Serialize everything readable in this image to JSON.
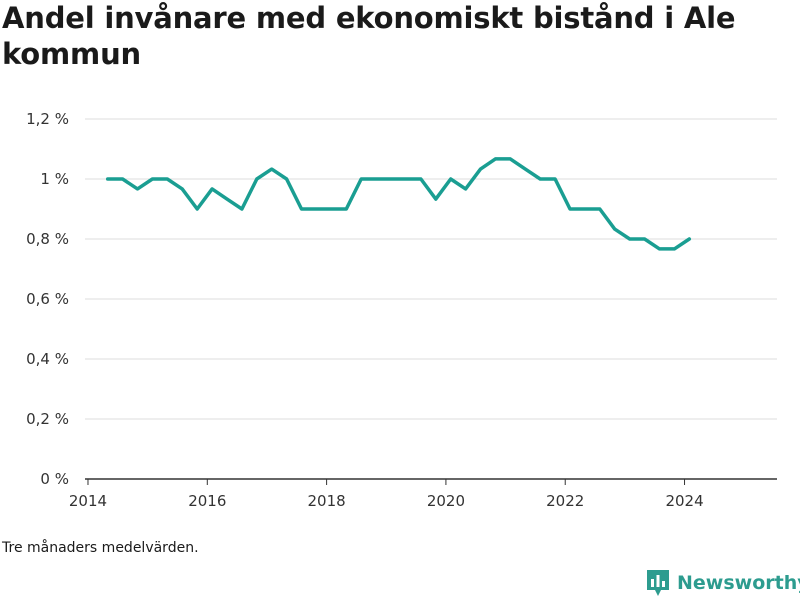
{
  "title": "Andel invånare med ekonomiskt bistånd i Ale kommun",
  "footnote": "Tre månaders medelvärden.",
  "brand": {
    "name": "Newsworthy",
    "icon": "newsworthy-logo-icon"
  },
  "colors": {
    "line": "#1a9e92",
    "grid": "#dddddd",
    "axis": "#333333",
    "brand": "#2d9c8f"
  },
  "chart_data": {
    "type": "line",
    "title": "Andel invånare med ekonomiskt bistånd i Ale kommun",
    "xlabel": "",
    "ylabel": "",
    "xlim": [
      2013.95,
      2025.55
    ],
    "ylim": [
      0,
      1.2
    ],
    "x_ticks": [
      {
        "value": 2014,
        "label": "2014"
      },
      {
        "value": 2016,
        "label": "2016"
      },
      {
        "value": 2018,
        "label": "2018"
      },
      {
        "value": 2020,
        "label": "2020"
      },
      {
        "value": 2022,
        "label": "2022"
      },
      {
        "value": 2024,
        "label": "2024"
      }
    ],
    "y_ticks": [
      {
        "value": 0,
        "label": "0 %"
      },
      {
        "value": 0.2,
        "label": "0,2 %"
      },
      {
        "value": 0.4,
        "label": "0,4 %"
      },
      {
        "value": 0.6,
        "label": "0,6 %"
      },
      {
        "value": 0.8,
        "label": "0,8 %"
      },
      {
        "value": 1.0,
        "label": "1 %"
      },
      {
        "value": 1.2,
        "label": "1,2 %"
      }
    ],
    "grid": true,
    "series": [
      {
        "x": [
          2014.33,
          2014.58,
          2014.83,
          2015.08,
          2015.33,
          2015.58,
          2015.83,
          2016.08,
          2016.33,
          2016.58,
          2016.83,
          2017.08,
          2017.33,
          2017.58,
          2017.83,
          2018.08,
          2018.33,
          2018.58,
          2018.83,
          2019.08,
          2019.33,
          2019.58,
          2019.83,
          2020.08,
          2020.33,
          2020.58,
          2020.83,
          2021.08,
          2021.33,
          2021.58,
          2021.83,
          2022.08,
          2022.33,
          2022.58,
          2022.83,
          2023.08,
          2023.33,
          2023.58,
          2023.83,
          2024.08
        ],
        "y": [
          1.0,
          1.0,
          0.967,
          1.0,
          1.0,
          0.967,
          0.9,
          0.967,
          0.933,
          0.9,
          1.0,
          1.033,
          1.0,
          0.9,
          0.9,
          0.9,
          0.9,
          1.0,
          1.0,
          1.0,
          1.0,
          1.0,
          0.933,
          1.0,
          0.967,
          1.033,
          1.067,
          1.067,
          1.033,
          1.0,
          1.0,
          0.9,
          0.9,
          0.9,
          0.833,
          0.8,
          0.8,
          0.767,
          0.767,
          0.8
        ]
      }
    ]
  }
}
